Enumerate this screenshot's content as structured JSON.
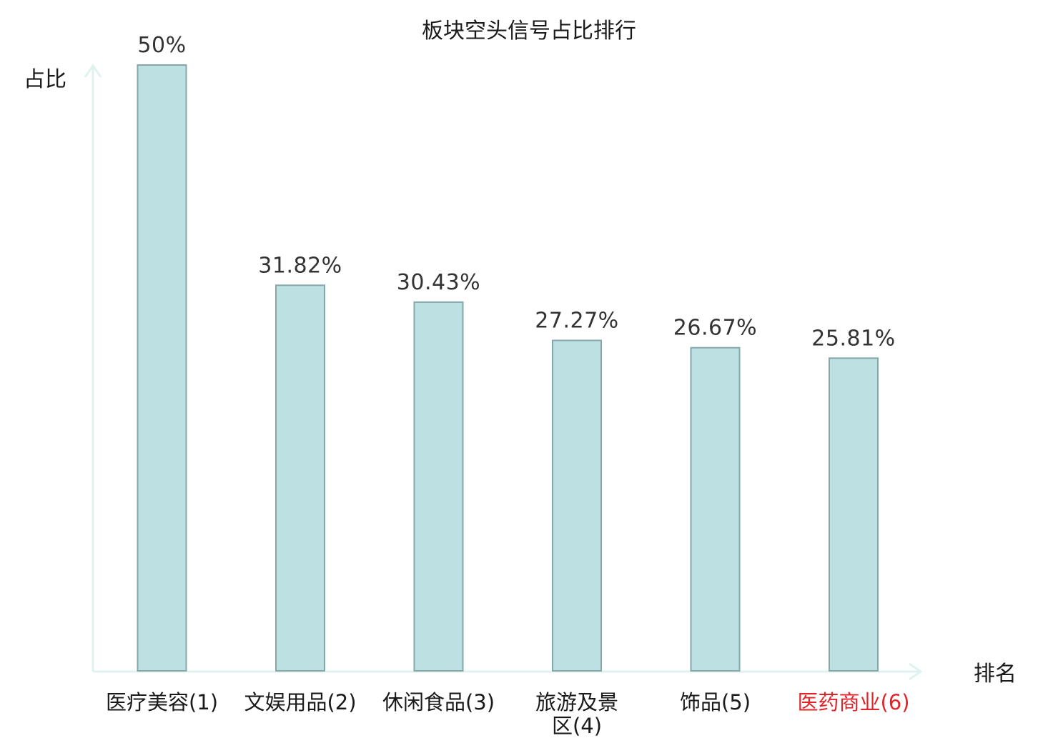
{
  "chart_data": {
    "type": "bar",
    "title": "板块空头信号占比排行",
    "ylabel": "占比",
    "xlabel": "排名",
    "ylim": [
      0,
      50
    ],
    "grid": false,
    "legend": "none",
    "categories": [
      "医疗美容(1)",
      "文娱用品(2)",
      "休闲食品(3)",
      "旅游及景区(4)",
      "饰品(5)",
      "医药商业(6)"
    ],
    "category_lines": [
      [
        "医疗美容(1)"
      ],
      [
        "文娱用品(2)"
      ],
      [
        "休闲食品(3)"
      ],
      [
        "旅游及景",
        "区(4)"
      ],
      [
        "饰品(5)"
      ],
      [
        "医药商业(6)"
      ]
    ],
    "values": [
      50,
      31.82,
      30.43,
      27.27,
      26.67,
      25.81
    ],
    "value_labels": [
      "50%",
      "31.82%",
      "30.43%",
      "27.27%",
      "26.67%",
      "25.81%"
    ],
    "highlight_index": 5,
    "colors": {
      "bar_fill": "#bde1e3",
      "bar_stroke": "#86a6a8",
      "axis": "#dff2ef",
      "highlight_text": "#e0242a",
      "text": "#1a1a1a",
      "value_text": "#333333"
    }
  }
}
